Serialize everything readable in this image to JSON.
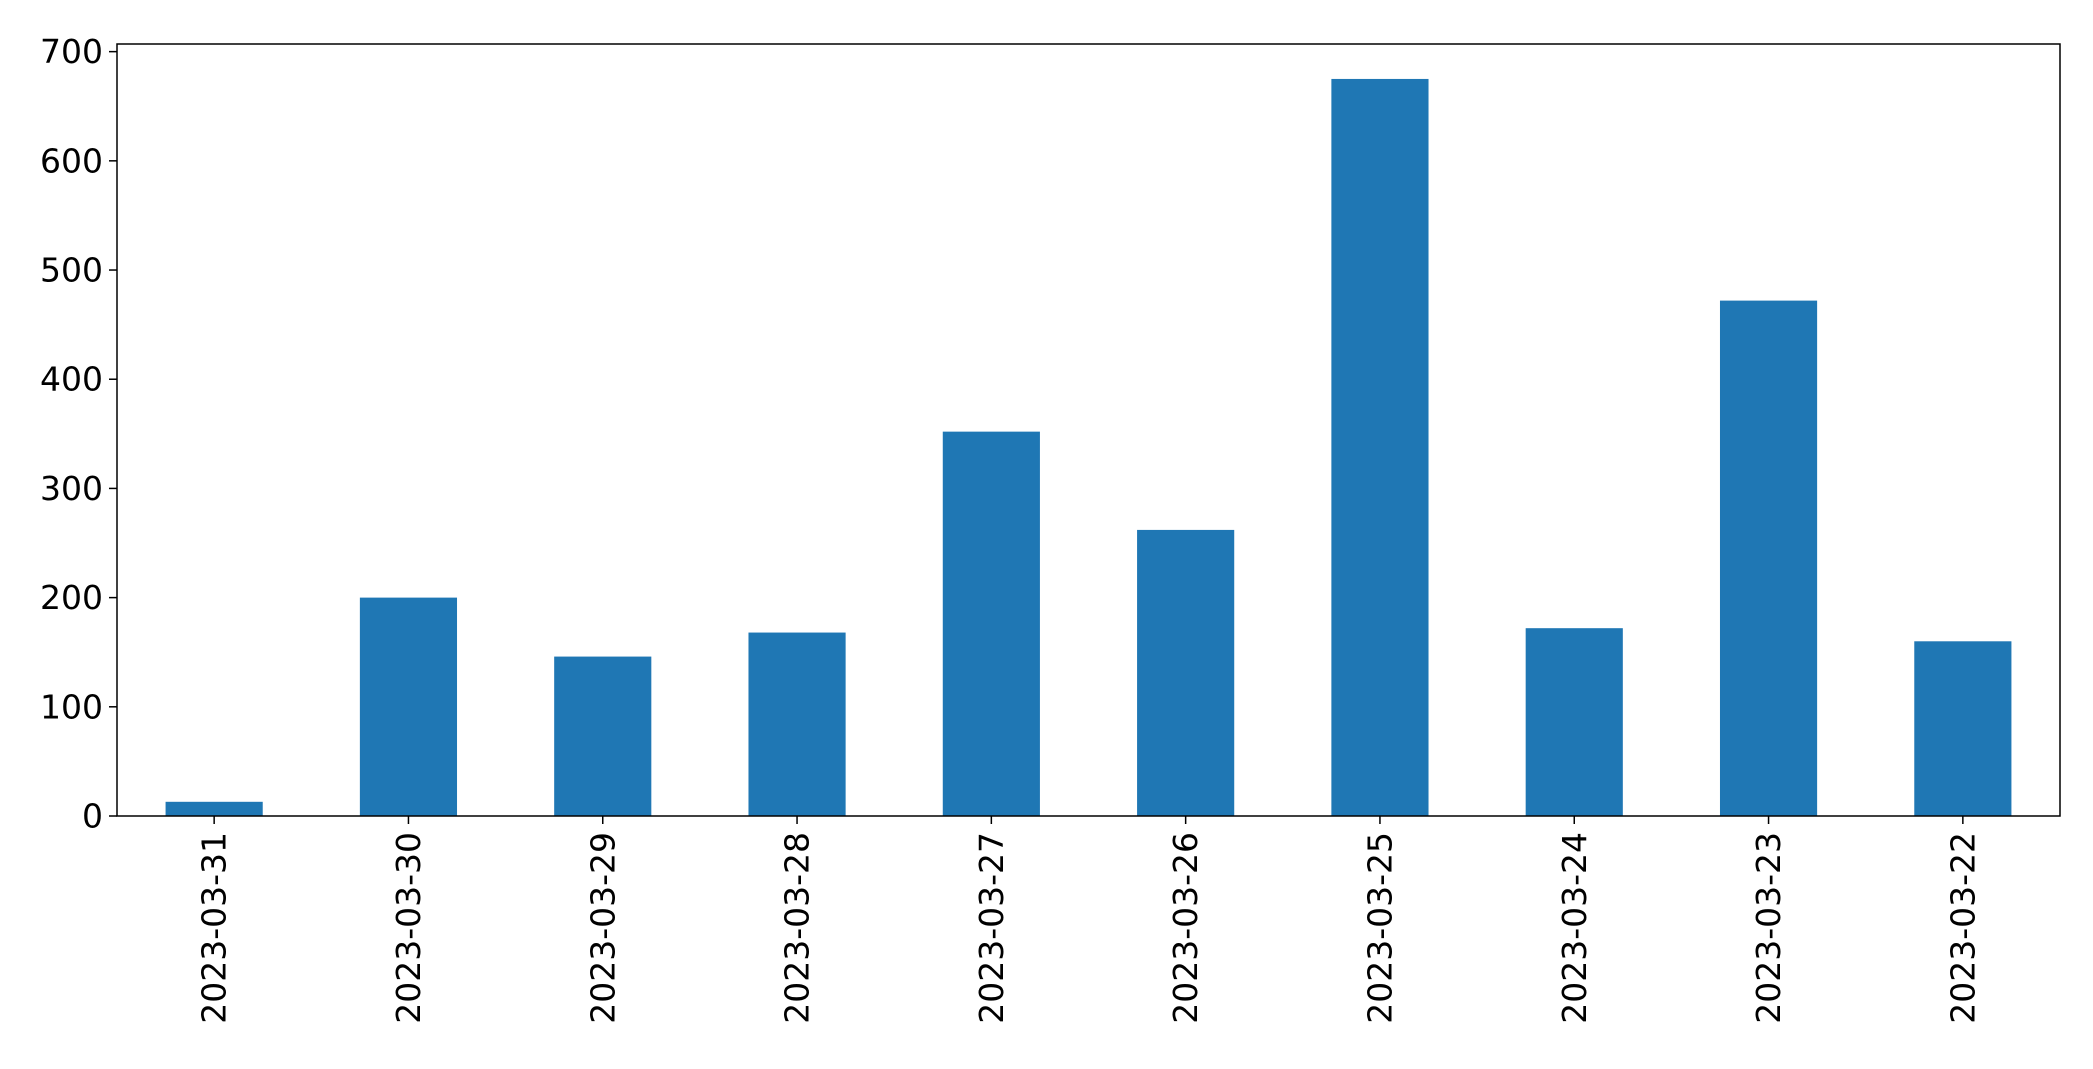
{
  "chart_data": {
    "type": "bar",
    "title": "",
    "xlabel": "",
    "ylabel": "",
    "categories": [
      "2023-03-31",
      "2023-03-30",
      "2023-03-29",
      "2023-03-28",
      "2023-03-27",
      "2023-03-26",
      "2023-03-25",
      "2023-03-24",
      "2023-03-23",
      "2023-03-22"
    ],
    "values": [
      13,
      200,
      146,
      168,
      352,
      262,
      675,
      172,
      472,
      160
    ],
    "ylim": [
      0,
      707
    ],
    "yticks": [
      0,
      100,
      200,
      300,
      400,
      500,
      600,
      700
    ],
    "grid": false,
    "legend": false,
    "bar_color": "#1f77b4"
  }
}
